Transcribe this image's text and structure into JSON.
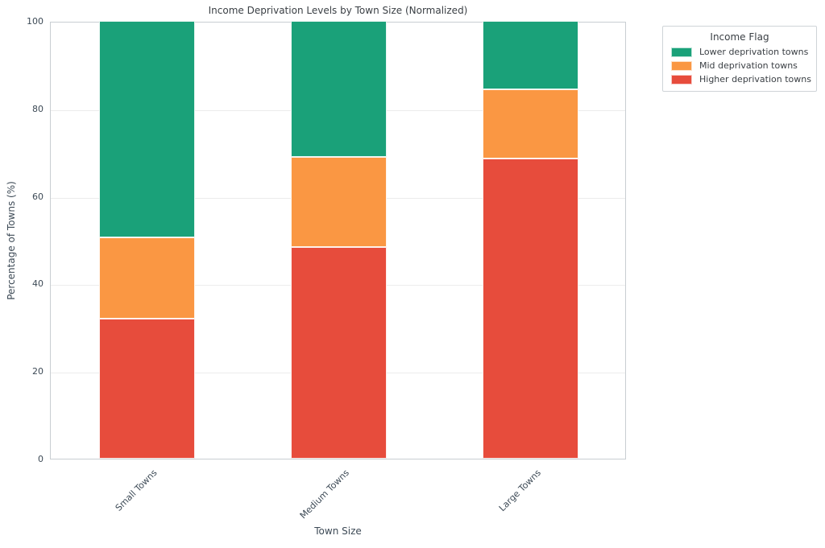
{
  "title": "Income Deprivation Levels by Town Size (Normalized)",
  "axes": {
    "x_label": "Town Size",
    "y_label": "Percentage of Towns (%)",
    "y_ticks": [
      0,
      20,
      40,
      60,
      80,
      100
    ]
  },
  "legend": {
    "title": "Income Flag",
    "items": [
      {
        "label": "Lower deprivation towns",
        "color": "#1AA179"
      },
      {
        "label": "Mid deprivation towns",
        "color": "#FA9743"
      },
      {
        "label": "Higher deprivation towns",
        "color": "#E74C3C"
      }
    ]
  },
  "colors": {
    "lower_deprivation": "#1AA179",
    "mid_deprivation": "#FA9743",
    "higher_deprivation": "#E74C3C",
    "gridline": "#ececec",
    "spine": "#c9ced2",
    "text": "#3d4a56"
  },
  "chart_data": {
    "type": "bar",
    "stacked": true,
    "normalized_percent": true,
    "title": "Income Deprivation Levels by Town Size (Normalized)",
    "xlabel": "Town Size",
    "ylabel": "Percentage of Towns (%)",
    "ylim": [
      0,
      100
    ],
    "grid": true,
    "legend_title": "Income Flag",
    "legend_position": "outside upper right",
    "categories": [
      "Small Towns",
      "Medium Towns",
      "Large Towns"
    ],
    "series": [
      {
        "name": "Higher deprivation towns",
        "color": "#E74C3C",
        "values": [
          32.0,
          48.3,
          68.6
        ]
      },
      {
        "name": "Mid deprivation towns",
        "color": "#FA9743",
        "values": [
          18.6,
          20.6,
          15.8
        ]
      },
      {
        "name": "Lower deprivation towns",
        "color": "#1AA179",
        "values": [
          49.4,
          31.1,
          15.6
        ]
      }
    ]
  }
}
